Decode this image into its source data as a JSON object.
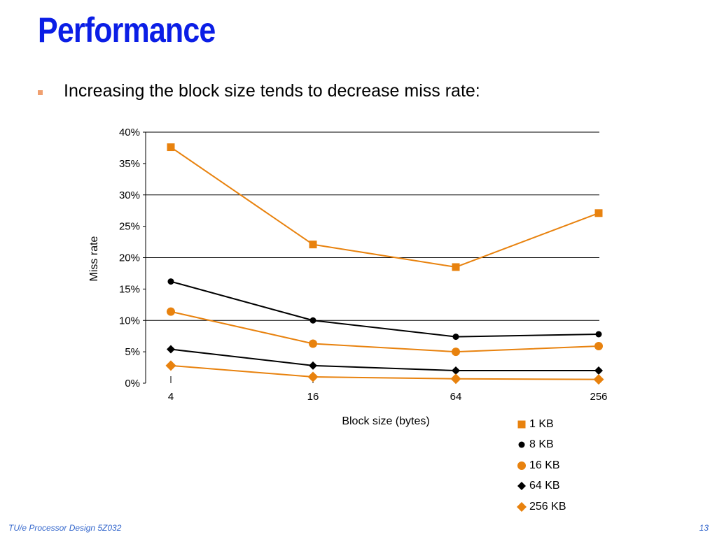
{
  "slide": {
    "title": "Performance",
    "bullet": "Increasing the block size tends to decrease miss rate:",
    "footer_left": "TU/e Processor Design 5Z032",
    "footer_right": "13"
  },
  "colors": {
    "title": "#0b1ee6",
    "orange": "#e8820e",
    "black": "#000000",
    "footer": "#3366cc"
  },
  "chart_data": {
    "type": "line",
    "xlabel": "Block size (bytes)",
    "ylabel": "Miss rate",
    "categories": [
      "4",
      "16",
      "64",
      "256"
    ],
    "ylim": [
      0,
      40
    ],
    "yticks": [
      "0%",
      "5%",
      "10%",
      "15%",
      "20%",
      "25%",
      "30%",
      "35%",
      "40%"
    ],
    "gridlines": [
      10,
      20,
      30,
      40
    ],
    "legend_position": "bottom-right",
    "series": [
      {
        "name": "1 KB",
        "marker": "square",
        "color": "#e8820e",
        "values": [
          37.6,
          22.1,
          18.5,
          27.1
        ]
      },
      {
        "name": "8 KB",
        "marker": "circle-small",
        "color": "#000000",
        "values": [
          16.2,
          10.0,
          7.4,
          7.8
        ]
      },
      {
        "name": "16 KB",
        "marker": "circle",
        "color": "#e8820e",
        "values": [
          11.4,
          6.3,
          5.0,
          5.9
        ]
      },
      {
        "name": "64 KB",
        "marker": "diamond-small",
        "color": "#000000",
        "values": [
          5.4,
          2.8,
          2.0,
          2.0
        ]
      },
      {
        "name": "256 KB",
        "marker": "diamond",
        "color": "#e8820e",
        "values": [
          2.8,
          1.0,
          0.7,
          0.6
        ]
      }
    ]
  }
}
